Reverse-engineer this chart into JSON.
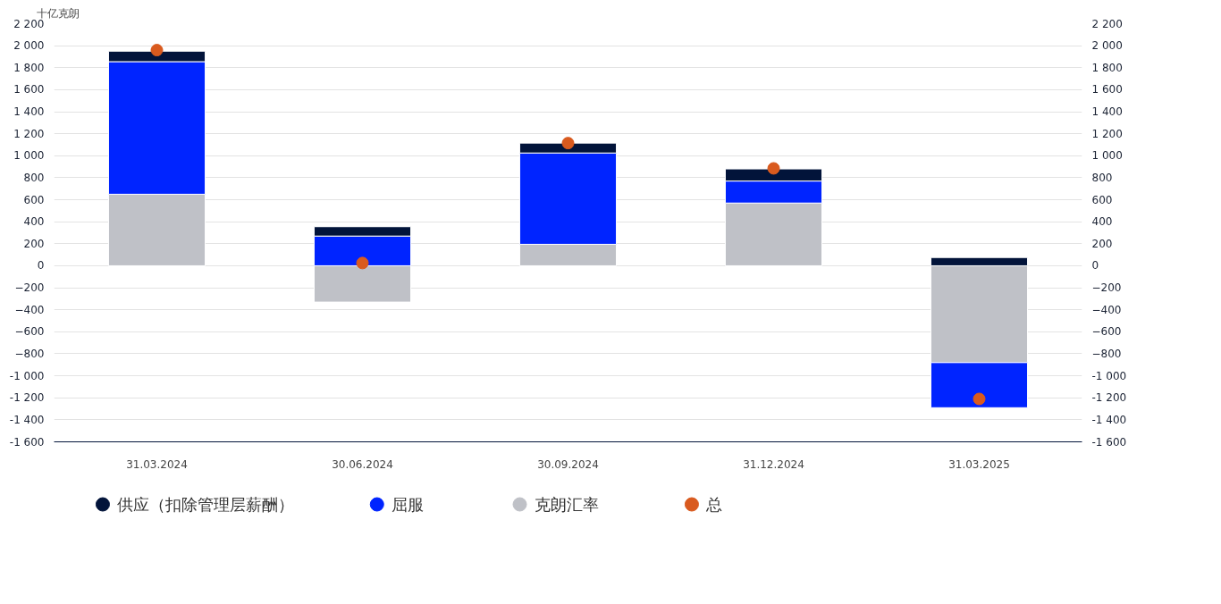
{
  "chart_data": {
    "type": "bar",
    "stacked": true,
    "ylabel": "十亿克朗",
    "categories": [
      "31.03.2024",
      "30.06.2024",
      "30.09.2024",
      "31.12.2024",
      "31.03.2025"
    ],
    "series": [
      {
        "name": "克朗汇率",
        "color": "#bfc1c7",
        "values": [
          650,
          -330,
          195,
          570,
          -880
        ]
      },
      {
        "name": "屈服",
        "color": "#0024ff",
        "values": [
          1205,
          270,
          830,
          200,
          -410
        ]
      },
      {
        "name": "供应（扣除管理层薪酬）",
        "color": "#02143a",
        "values": [
          95,
          85,
          90,
          110,
          75
        ]
      },
      {
        "name": "总",
        "type": "scatter",
        "color": "#d95a1e",
        "marker": "circle",
        "values": [
          1960,
          25,
          1115,
          885,
          -1210
        ]
      }
    ],
    "ylim": [
      -1600,
      2200
    ],
    "yticks": [
      {
        "value": 2200,
        "label": "2 200"
      },
      {
        "value": 2000,
        "label": "2 000"
      },
      {
        "value": 1800,
        "label": "1 800"
      },
      {
        "value": 1600,
        "label": "1 600"
      },
      {
        "value": 1400,
        "label": "1 400"
      },
      {
        "value": 1200,
        "label": "1 200"
      },
      {
        "value": 1000,
        "label": "1 000"
      },
      800,
      600,
      400,
      200,
      0,
      -200,
      -400,
      -600,
      -800,
      {
        "value": -1000,
        "label": "-1 000"
      },
      {
        "value": -1200,
        "label": "-1 200"
      },
      {
        "value": -1400,
        "label": "-1 400"
      },
      {
        "value": -1600,
        "label": "-1 600"
      }
    ],
    "y2lim": [
      -1600,
      2200
    ],
    "y2ticks": [
      {
        "value": 2200,
        "label": "2 200"
      },
      {
        "value": 2000,
        "label": "2 000"
      },
      {
        "value": 1800,
        "label": "1 800"
      },
      {
        "value": 1600,
        "label": "1 600"
      },
      {
        "value": 1400,
        "label": "1 400"
      },
      {
        "value": 1200,
        "label": "1 200"
      },
      {
        "value": 1000,
        "label": "1 000"
      },
      800,
      600,
      400,
      200,
      0,
      -200,
      -400,
      -600,
      -800,
      {
        "value": -1000,
        "label": "-1 000"
      },
      {
        "value": -1200,
        "label": "-1 200"
      },
      {
        "value": -1400,
        "label": "-1 400"
      },
      {
        "value": -1600,
        "label": "-1 600"
      }
    ],
    "grid": "y",
    "legend": "bottom"
  }
}
